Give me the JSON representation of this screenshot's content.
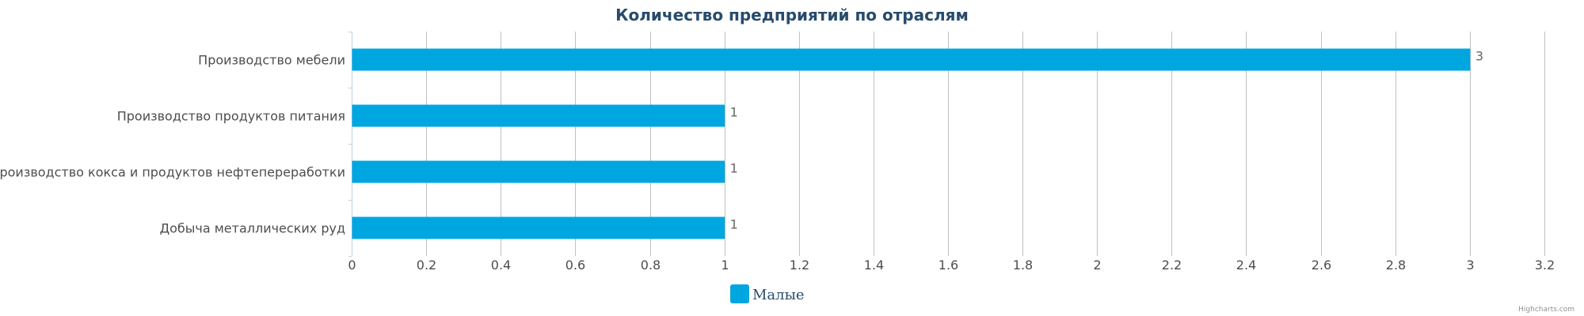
{
  "chart_data": {
    "type": "bar",
    "orientation": "horizontal",
    "title": "Количество предприятий по отраслям",
    "categories": [
      "Производство мебели",
      "Производство продуктов питания",
      "Производство кокса и продуктов нефтепереработки",
      "Добыча металлических руд"
    ],
    "series": [
      {
        "name": "Малые",
        "values": [
          3,
          1,
          1,
          1
        ],
        "color": "#00a6e0"
      }
    ],
    "xlim": [
      0,
      3.2
    ],
    "ticks": [
      "0",
      "0.2",
      "0.4",
      "0.6",
      "0.8",
      "1",
      "1.2",
      "1.4",
      "1.6",
      "1.8",
      "2",
      "2.2",
      "2.4",
      "2.6",
      "2.8",
      "3",
      "3.2"
    ],
    "data_labels": [
      "3",
      "1",
      "1",
      "1"
    ],
    "grid": true,
    "legend": "bottom-center"
  },
  "credits": "Highcharts.com",
  "colors": {
    "bar": "#00a6e0",
    "grid": "#c0c0c0",
    "title": "#274b6d",
    "text": "#4d4d4d"
  }
}
